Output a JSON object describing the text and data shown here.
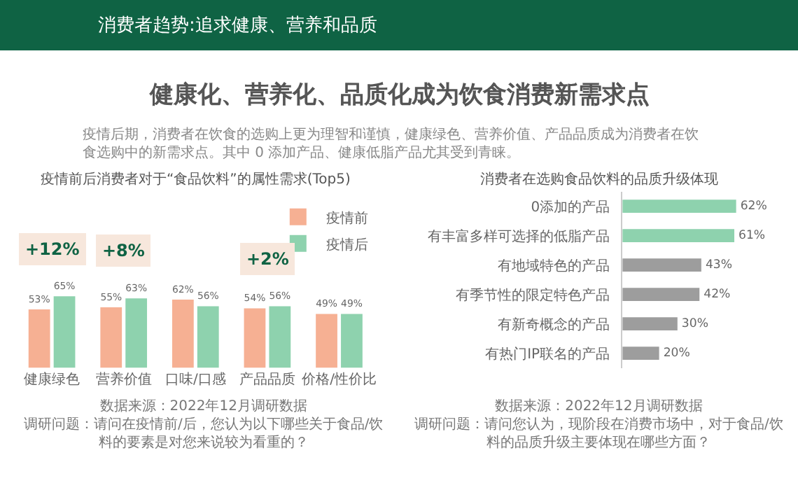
{
  "chart_data": [
    {
      "type": "bar",
      "title": "疫情前后消费者对于“食品饮料”的属性需求(Top5)",
      "categories": [
        "健康绿色",
        "营养价值",
        "口味/口感",
        "产品品质",
        "价格/性价比"
      ],
      "series": [
        {
          "name": "疫情前",
          "color": "#f6b093",
          "values": [
            53,
            55,
            62,
            54,
            49
          ],
          "value_labels": [
            "53%",
            "55%",
            "62%",
            "54%",
            "49%"
          ]
        },
        {
          "name": "疫情后",
          "color": "#8ed2ae",
          "values": [
            65,
            63,
            56,
            56,
            49
          ],
          "value_labels": [
            "65%",
            "63%",
            "56%",
            "56%",
            "49%"
          ]
        }
      ],
      "legend": "top right",
      "tick_labels": "x",
      "annotations": [
        "消费者趋势:追求健康、营养和品质",
        "健康化、营养化、品质化成为饮食消费新需求点",
        "疫情后期，消费者在饮食的选购上更为理智和谨慎，健康绿色、营养价值、产品品质成为消费者在饮食选购中的新需求点。其中 0 添加产品、健康低脂产品尤其受到青睐。",
        "+12%",
        "+8%",
        "+2%",
        "数据来源：2022年12月调研数据",
        "调研问题：请问在疫情前/后，您认为以下哪些关于食品/饮料的要素是对您来说较为看重的？"
      ]
    },
    {
      "type": "bar",
      "orientation": "horizontal",
      "title": "消费者在选购食品饮料的品质升级体现",
      "categories": [
        "0添加的产品",
        "有丰富多样可选择的低脂产品",
        "有地域特色的产品",
        "有季节性的限定特色产品",
        "有新奇概念的产品",
        "有热门IP联名的产品"
      ],
      "values": [
        62,
        61,
        43,
        42,
        30,
        20
      ],
      "colors": [
        "#8ed2ae",
        "#8ed2ae",
        "#9d9d9d",
        "#9d9d9d",
        "#9d9d9d",
        "#9d9d9d"
      ],
      "value_labels": [
        "62%",
        "61%",
        "43%",
        "42%",
        "30%",
        "20%"
      ],
      "tick_labels": "y",
      "annotations": [
        "数据来源：2022年12月调研数据",
        "调研问题：请问您认为，现阶段在消费市场中，对于食品/饮料的品质升级主要体现在哪些方面？"
      ]
    }
  ]
}
